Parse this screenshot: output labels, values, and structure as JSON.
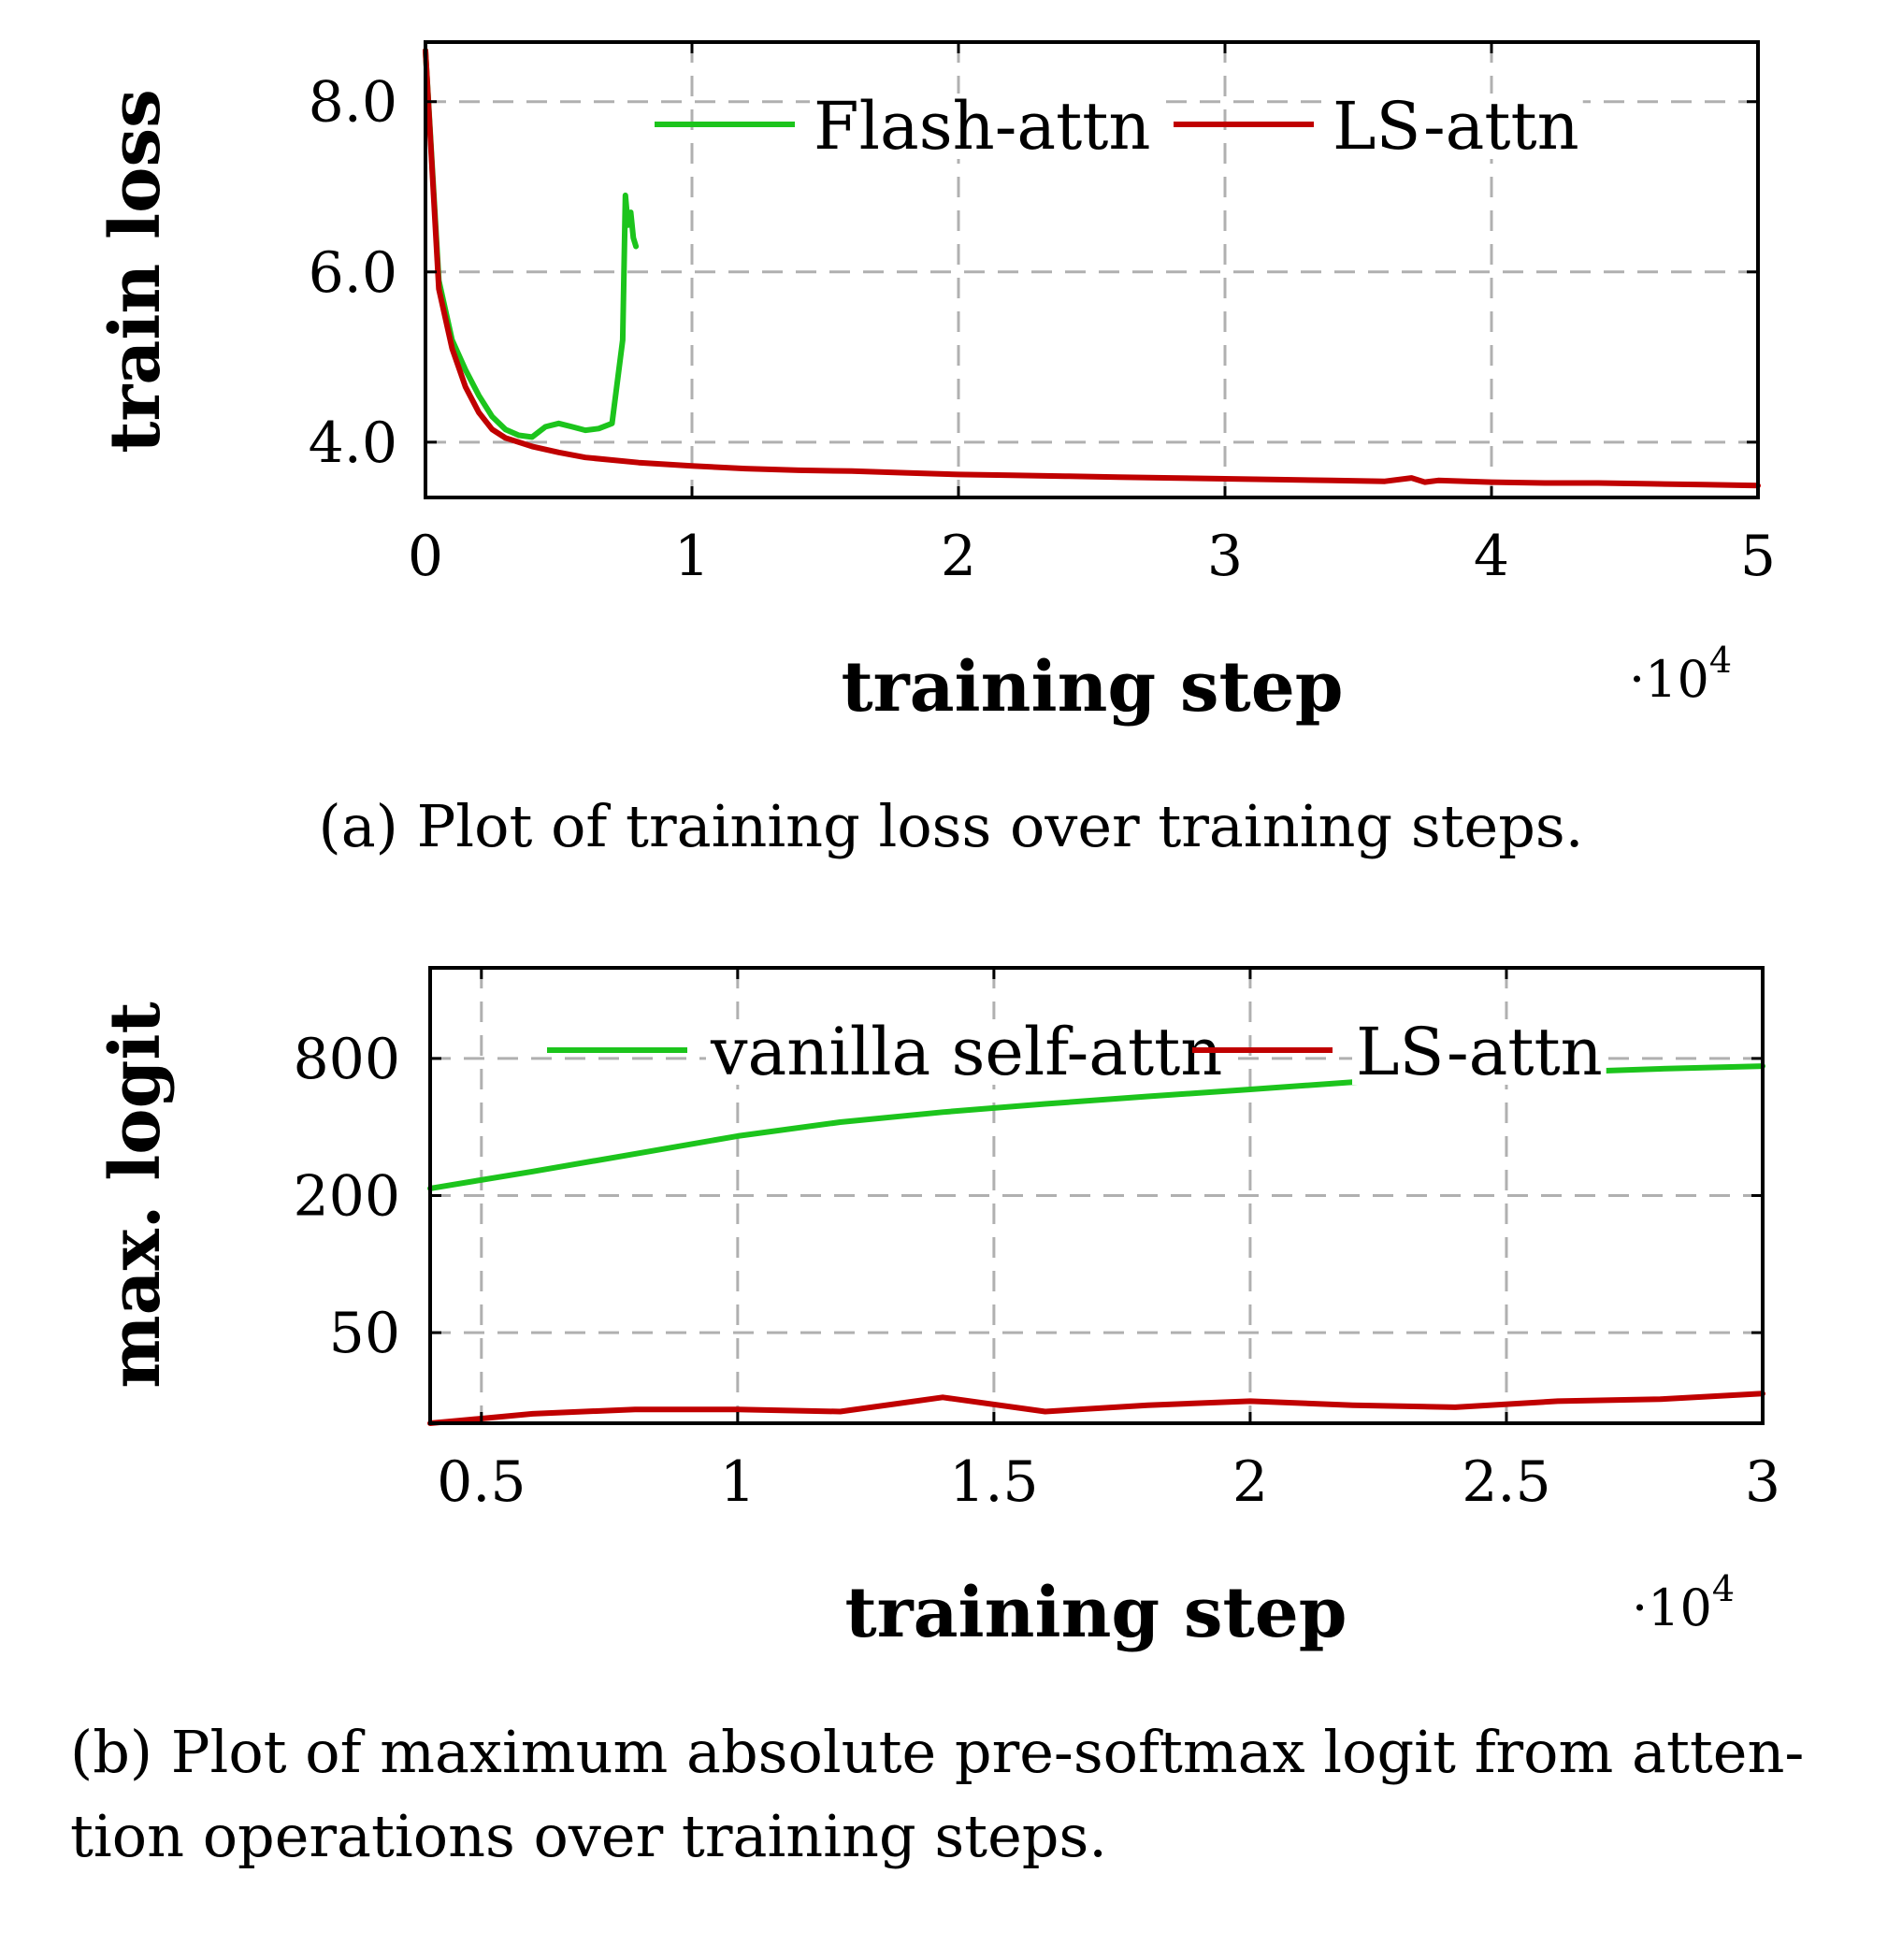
{
  "chart_data": [
    {
      "type": "line",
      "xlabel": "training step",
      "ylabel": "train loss",
      "x_multiplier": "·10",
      "x_multiplier_exp": "4",
      "xlim": [
        0,
        5
      ],
      "ylim": [
        3.35,
        8.7
      ],
      "xticks": [
        0,
        1,
        2,
        3,
        4,
        5
      ],
      "xtick_labels": [
        "0",
        "1",
        "2",
        "3",
        "4",
        "5"
      ],
      "yticks": [
        4.0,
        6.0,
        8.0
      ],
      "ytick_labels": [
        "4.0",
        "6.0",
        "8.0"
      ],
      "grid": true,
      "legend_position": "top",
      "caption": "(a) Plot of training loss over training steps.",
      "series": [
        {
          "name": "Flash-attn",
          "color": "#1cc41c",
          "x": [
            0,
            0.05,
            0.1,
            0.15,
            0.2,
            0.25,
            0.3,
            0.35,
            0.4,
            0.45,
            0.5,
            0.55,
            0.6,
            0.65,
            0.7,
            0.74,
            0.75,
            0.76,
            0.77,
            0.78,
            0.79
          ],
          "y": [
            8.6,
            5.9,
            5.2,
            4.85,
            4.55,
            4.3,
            4.15,
            4.08,
            4.06,
            4.18,
            4.22,
            4.18,
            4.14,
            4.16,
            4.22,
            5.2,
            6.9,
            6.55,
            6.7,
            6.4,
            6.3
          ]
        },
        {
          "name": "LS-attn",
          "color": "#c00000",
          "x": [
            0,
            0.05,
            0.1,
            0.15,
            0.2,
            0.25,
            0.3,
            0.4,
            0.5,
            0.6,
            0.8,
            1.0,
            1.2,
            1.4,
            1.6,
            1.8,
            2.0,
            2.2,
            2.4,
            2.6,
            2.8,
            3.0,
            3.2,
            3.4,
            3.6,
            3.7,
            3.75,
            3.8,
            4.0,
            4.2,
            4.4,
            4.6,
            4.8,
            5.0
          ],
          "y": [
            8.6,
            5.8,
            5.1,
            4.65,
            4.35,
            4.15,
            4.05,
            3.95,
            3.88,
            3.82,
            3.76,
            3.72,
            3.69,
            3.67,
            3.66,
            3.64,
            3.62,
            3.61,
            3.6,
            3.59,
            3.58,
            3.57,
            3.56,
            3.55,
            3.54,
            3.58,
            3.53,
            3.55,
            3.53,
            3.52,
            3.52,
            3.51,
            3.5,
            3.49
          ]
        }
      ]
    },
    {
      "type": "line",
      "xlabel": "training step",
      "ylabel": "max. logit",
      "x_multiplier": "·10",
      "x_multiplier_exp": "4",
      "xlim": [
        0.4,
        3
      ],
      "ylim": [
        20,
        2000
      ],
      "y_scale": "log",
      "xticks": [
        0.5,
        1,
        1.5,
        2,
        2.5,
        3
      ],
      "xtick_labels": [
        "0.5",
        "1",
        "1.5",
        "2",
        "2.5",
        "3"
      ],
      "yticks": [
        50,
        200,
        800
      ],
      "ytick_labels": [
        "50",
        "200",
        "800"
      ],
      "grid": true,
      "legend_position": "top",
      "caption_lines": [
        "(b) Plot of maximum absolute pre-softmax logit from atten-",
        "tion operations over training steps."
      ],
      "series": [
        {
          "name": "vanilla self-attn",
          "color": "#1cc41c",
          "x": [
            0.4,
            0.6,
            0.8,
            1.0,
            1.2,
            1.4,
            1.6,
            1.8,
            2.0,
            2.2,
            2.4,
            2.6,
            2.8,
            3.0
          ],
          "y": [
            215,
            255,
            305,
            365,
            420,
            465,
            505,
            545,
            585,
            630,
            660,
            695,
            720,
            740
          ]
        },
        {
          "name": "LS-attn",
          "color": "#c00000",
          "x": [
            0.4,
            0.6,
            0.8,
            1.0,
            1.2,
            1.4,
            1.6,
            1.8,
            2.0,
            2.2,
            2.4,
            2.6,
            2.8,
            3.0
          ],
          "y": [
            20,
            22,
            23,
            23,
            22.5,
            26,
            22.5,
            24,
            25,
            24,
            23.5,
            25,
            25.5,
            27
          ]
        }
      ]
    }
  ]
}
